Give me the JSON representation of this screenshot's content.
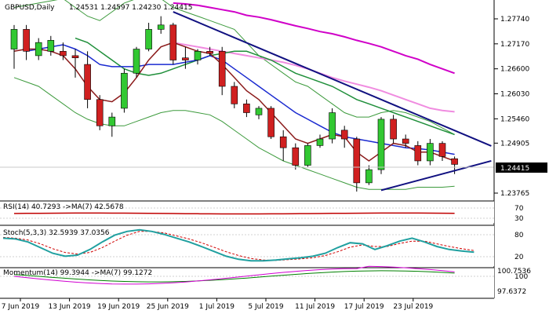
{
  "chart_data": {
    "type": "candlestick",
    "symbol": "GBPUSD,Daily",
    "ohlc_header": "1.24531 1.24597 1.24230 1.24415",
    "price_ticks": [
      "1.27740",
      "1.27170",
      "1.26600",
      "1.26030",
      "1.25460",
      "1.24905",
      "1.23765"
    ],
    "current_price": "1.24415",
    "date_labels": [
      "7 Jun 2019",
      "13 Jun 2019",
      "19 Jun 2019",
      "25 Jun 2019",
      "1 Jul 2019",
      "5 Jul 2019",
      "11 Jul 2019",
      "17 Jul 2019",
      "23 Jul 2019"
    ],
    "candles": [
      {
        "o": 1.2705,
        "h": 1.276,
        "l": 1.266,
        "c": 1.275
      },
      {
        "o": 1.275,
        "h": 1.276,
        "l": 1.268,
        "c": 1.27
      },
      {
        "o": 1.269,
        "h": 1.273,
        "l": 1.268,
        "c": 1.272
      },
      {
        "o": 1.27,
        "h": 1.2735,
        "l": 1.269,
        "c": 1.2725
      },
      {
        "o": 1.27,
        "h": 1.272,
        "l": 1.268,
        "c": 1.269
      },
      {
        "o": 1.269,
        "h": 1.2705,
        "l": 1.264,
        "c": 1.2685
      },
      {
        "o": 1.267,
        "h": 1.27,
        "l": 1.257,
        "c": 1.259
      },
      {
        "o": 1.259,
        "h": 1.26,
        "l": 1.252,
        "c": 1.253
      },
      {
        "o": 1.253,
        "h": 1.256,
        "l": 1.2505,
        "c": 1.255
      },
      {
        "o": 1.257,
        "h": 1.266,
        "l": 1.256,
        "c": 1.265
      },
      {
        "o": 1.265,
        "h": 1.271,
        "l": 1.264,
        "c": 1.2705
      },
      {
        "o": 1.2705,
        "h": 1.2765,
        "l": 1.27,
        "c": 1.275
      },
      {
        "o": 1.275,
        "h": 1.278,
        "l": 1.274,
        "c": 1.276
      },
      {
        "o": 1.276,
        "h": 1.2765,
        "l": 1.267,
        "c": 1.268
      },
      {
        "o": 1.2685,
        "h": 1.271,
        "l": 1.266,
        "c": 1.268
      },
      {
        "o": 1.268,
        "h": 1.2705,
        "l": 1.267,
        "c": 1.27
      },
      {
        "o": 1.27,
        "h": 1.271,
        "l": 1.269,
        "c": 1.2695
      },
      {
        "o": 1.27,
        "h": 1.271,
        "l": 1.26,
        "c": 1.262
      },
      {
        "o": 1.262,
        "h": 1.263,
        "l": 1.257,
        "c": 1.258
      },
      {
        "o": 1.258,
        "h": 1.259,
        "l": 1.255,
        "c": 1.256
      },
      {
        "o": 1.2555,
        "h": 1.2575,
        "l": 1.2545,
        "c": 1.257
      },
      {
        "o": 1.257,
        "h": 1.2575,
        "l": 1.25,
        "c": 1.2505
      },
      {
        "o": 1.2505,
        "h": 1.252,
        "l": 1.245,
        "c": 1.248
      },
      {
        "o": 1.248,
        "h": 1.249,
        "l": 1.243,
        "c": 1.244
      },
      {
        "o": 1.244,
        "h": 1.249,
        "l": 1.2435,
        "c": 1.2485
      },
      {
        "o": 1.2485,
        "h": 1.251,
        "l": 1.248,
        "c": 1.25
      },
      {
        "o": 1.25,
        "h": 1.257,
        "l": 1.249,
        "c": 1.256
      },
      {
        "o": 1.252,
        "h": 1.253,
        "l": 1.248,
        "c": 1.25
      },
      {
        "o": 1.25,
        "h": 1.2505,
        "l": 1.238,
        "c": 1.24
      },
      {
        "o": 1.24,
        "h": 1.244,
        "l": 1.2395,
        "c": 1.243
      },
      {
        "o": 1.243,
        "h": 1.255,
        "l": 1.242,
        "c": 1.2545
      },
      {
        "o": 1.2545,
        "h": 1.2555,
        "l": 1.249,
        "c": 1.25
      },
      {
        "o": 1.25,
        "h": 1.251,
        "l": 1.248,
        "c": 1.249
      },
      {
        "o": 1.2485,
        "h": 1.2495,
        "l": 1.244,
        "c": 1.245
      },
      {
        "o": 1.245,
        "h": 1.25,
        "l": 1.244,
        "c": 1.249
      },
      {
        "o": 1.249,
        "h": 1.2495,
        "l": 1.245,
        "c": 1.246
      },
      {
        "o": 1.2455,
        "h": 1.246,
        "l": 1.242,
        "c": 1.2442
      }
    ],
    "bollinger_upper": [
      1.28,
      1.2805,
      1.281,
      1.2815,
      1.282,
      1.28,
      1.278,
      1.277,
      1.279,
      1.281,
      1.282,
      1.2825,
      1.282,
      1.28,
      1.279,
      1.278,
      1.277,
      1.276,
      1.275,
      1.272,
      1.269,
      1.267,
      1.265,
      1.263,
      1.262,
      1.26,
      1.258,
      1.256,
      1.255,
      1.255,
      1.256,
      1.2565,
      1.256,
      1.255,
      1.254,
      1.2525,
      1.251
    ],
    "bollinger_lower": [
      1.264,
      1.263,
      1.262,
      1.26,
      1.258,
      1.256,
      1.2545,
      1.2535,
      1.253,
      1.253,
      1.254,
      1.255,
      1.256,
      1.2565,
      1.2565,
      1.256,
      1.2555,
      1.254,
      1.252,
      1.25,
      1.248,
      1.2465,
      1.245,
      1.244,
      1.243,
      1.242,
      1.241,
      1.24,
      1.239,
      1.2385,
      1.2385,
      1.2385,
      1.2385,
      1.239,
      1.239,
      1.239,
      1.2392
    ],
    "sma_magenta": [
      1.281,
      1.2808,
      1.2805,
      1.28,
      1.2795,
      1.279,
      1.2782,
      1.2778,
      1.2772,
      1.2765,
      1.2758,
      1.2752,
      1.2745,
      1.274,
      1.2733,
      1.2725,
      1.2718,
      1.271,
      1.27,
      1.269,
      1.2682,
      1.267,
      1.266,
      1.265
    ],
    "sma_pink": [
      1.272,
      1.2715,
      1.271,
      1.2705,
      1.27,
      1.2695,
      1.269,
      1.2685,
      1.268,
      1.2675,
      1.2668,
      1.266,
      1.265,
      1.264,
      1.2632,
      1.2625,
      1.2618,
      1.261,
      1.26,
      1.259,
      1.258,
      1.257,
      1.2565,
      1.2562
    ],
    "sma_green": [
      1.273,
      1.272,
      1.27,
      1.268,
      1.266,
      1.265,
      1.2645,
      1.265,
      1.266,
      1.267,
      1.268,
      1.269,
      1.2695,
      1.27,
      1.27,
      1.269,
      1.268,
      1.2665,
      1.265,
      1.264,
      1.263,
      1.262,
      1.2605,
      1.259,
      1.258,
      1.257,
      1.256,
      1.255,
      1.254,
      1.253,
      1.252,
      1.251
    ],
    "sma_blue": [
      1.27,
      1.2705,
      1.271,
      1.2715,
      1.2705,
      1.269,
      1.267,
      1.2665,
      1.2665,
      1.2665,
      1.267,
      1.267,
      1.267,
      1.2675,
      1.268,
      1.269,
      1.268,
      1.266,
      1.264,
      1.262,
      1.26,
      1.258,
      1.256,
      1.2545,
      1.253,
      1.2515,
      1.2505,
      1.25,
      1.2495,
      1.249,
      1.2485,
      1.248,
      1.2478,
      1.2475,
      1.247,
      1.2465
    ],
    "sma_brown": [
      1.27,
      1.2705,
      1.2705,
      1.27,
      1.269,
      1.266,
      1.262,
      1.259,
      1.2585,
      1.2605,
      1.264,
      1.268,
      1.271,
      1.272,
      1.271,
      1.27,
      1.2695,
      1.267,
      1.264,
      1.261,
      1.259,
      1.256,
      1.253,
      1.25,
      1.249,
      1.25,
      1.251,
      1.2505,
      1.247,
      1.245,
      1.247,
      1.249,
      1.2485,
      1.247,
      1.247,
      1.246,
      1.245
    ],
    "trendline_upper": {
      "from": [
        13,
        1.279
      ],
      "to": [
        39,
        1.2484
      ]
    },
    "trendline_lower": {
      "from": [
        30,
        1.2383
      ],
      "to": [
        39,
        1.245
      ]
    },
    "rsi": {
      "label": "RSI(14) 40.7293  ->MA(7) 42.5678",
      "ticks": [
        "70",
        "30"
      ]
    },
    "stoch": {
      "label": "Stoch(5,3,3) 32.5939 37.0356",
      "ticks": [
        "80",
        "20"
      ],
      "main": [
        70,
        68,
        60,
        45,
        30,
        22,
        25,
        40,
        60,
        78,
        88,
        92,
        88,
        80,
        70,
        60,
        48,
        35,
        22,
        14,
        10,
        10,
        12,
        15,
        18,
        22,
        30,
        45,
        58,
        55,
        40,
        50,
        62,
        70,
        60,
        48,
        40,
        36,
        33
      ],
      "signal": [
        72,
        70,
        65,
        55,
        42,
        32,
        28,
        32,
        45,
        62,
        78,
        88,
        88,
        84,
        76,
        68,
        58,
        46,
        34,
        24,
        16,
        12,
        11,
        13,
        15,
        18,
        24,
        34,
        46,
        52,
        48,
        48,
        56,
        62,
        62,
        55,
        48,
        42,
        37
      ]
    },
    "momentum": {
      "label": "Momentum(14) 99.3944  ->MA(7) 99.1272",
      "ticks": [
        "100.7536",
        "100",
        "97.6372"
      ]
    }
  }
}
